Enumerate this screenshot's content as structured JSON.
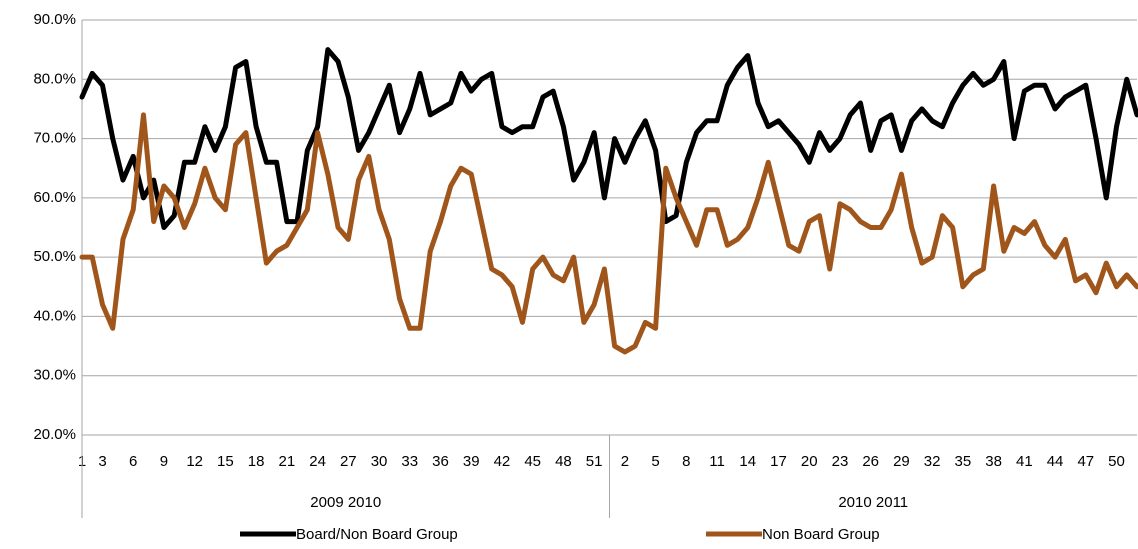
{
  "chart_data": {
    "type": "line",
    "categories": [
      "1",
      null,
      "3",
      null,
      null,
      "6",
      null,
      null,
      "9",
      null,
      null,
      "12",
      null,
      null,
      "15",
      null,
      null,
      "18",
      null,
      null,
      "21",
      null,
      null,
      "24",
      null,
      null,
      "27",
      null,
      null,
      "30",
      null,
      null,
      "33",
      null,
      null,
      "36",
      null,
      null,
      "39",
      null,
      null,
      "42",
      null,
      null,
      "45",
      null,
      null,
      "48",
      null,
      null,
      "51",
      null,
      null,
      "2",
      null,
      null,
      "5",
      null,
      null,
      "8",
      null,
      null,
      "11",
      null,
      null,
      "14",
      null,
      null,
      "17",
      null,
      null,
      "20",
      null,
      null,
      "23",
      null,
      null,
      "26",
      null,
      null,
      "29",
      null,
      null,
      "32",
      null,
      null,
      "35",
      null,
      null,
      "38",
      null,
      null,
      "41",
      null,
      null,
      "44",
      null,
      null,
      "47",
      null,
      null,
      "50",
      null,
      null
    ],
    "groups": [
      {
        "name": "2009 2010",
        "size": 52
      },
      {
        "name": "2010 2011",
        "size": 52
      }
    ],
    "series": [
      {
        "name": "Board/Non Board Group",
        "color": "#000000",
        "values": [
          77,
          81,
          79,
          70,
          63,
          67,
          60,
          63,
          55,
          57,
          66,
          66,
          72,
          68,
          72,
          82,
          83,
          72,
          66,
          66,
          56,
          56,
          68,
          72,
          85,
          83,
          77,
          68,
          71,
          75,
          79,
          71,
          75,
          81,
          74,
          75,
          76,
          81,
          78,
          80,
          81,
          72,
          71,
          72,
          72,
          77,
          78,
          72,
          63,
          66,
          71,
          60,
          70,
          66,
          70,
          73,
          68,
          56,
          57,
          66,
          71,
          73,
          73,
          79,
          82,
          84,
          76,
          72,
          73,
          71,
          69,
          66,
          71,
          68,
          70,
          74,
          76,
          68,
          73,
          74,
          68,
          73,
          75,
          73,
          72,
          76,
          79,
          81,
          79,
          80,
          83,
          70,
          78,
          79,
          79,
          75,
          77,
          78,
          79,
          70,
          60,
          72,
          80,
          74
        ]
      },
      {
        "name": "Non Board Group",
        "color": "#a0561a",
        "values": [
          50,
          50,
          42,
          38,
          53,
          58,
          74,
          56,
          62,
          60,
          55,
          59,
          65,
          60,
          58,
          69,
          71,
          60,
          49,
          51,
          52,
          55,
          58,
          71,
          64,
          55,
          53,
          63,
          67,
          58,
          53,
          43,
          38,
          38,
          51,
          56,
          62,
          65,
          64,
          56,
          48,
          47,
          45,
          39,
          48,
          50,
          47,
          46,
          50,
          39,
          42,
          48,
          35,
          34,
          35,
          39,
          38,
          65,
          60,
          56,
          52,
          58,
          58,
          52,
          53,
          55,
          60,
          66,
          59,
          52,
          51,
          56,
          57,
          48,
          59,
          58,
          56,
          55,
          55,
          58,
          64,
          55,
          49,
          50,
          57,
          55,
          45,
          47,
          48,
          62,
          51,
          55,
          54,
          56,
          52,
          50,
          53,
          46,
          47,
          44,
          49,
          45,
          47,
          45
        ]
      }
    ],
    "ylim": [
      20,
      90
    ],
    "yticks": [
      {
        "value": 20,
        "label": "20.0%"
      },
      {
        "value": 30,
        "label": "30.0%"
      },
      {
        "value": 40,
        "label": "40.0%"
      },
      {
        "value": 50,
        "label": "50.0%"
      },
      {
        "value": 60,
        "label": "60.0%"
      },
      {
        "value": 70,
        "label": "70.0%"
      },
      {
        "value": 80,
        "label": "80.0%"
      },
      {
        "value": 90,
        "label": "90.0%"
      }
    ],
    "grid": true,
    "legend": "bottom"
  }
}
